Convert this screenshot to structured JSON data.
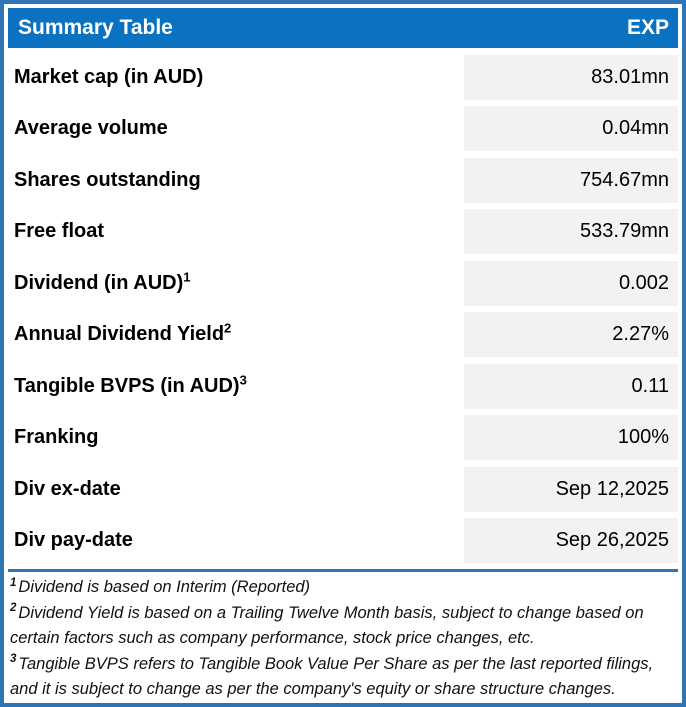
{
  "header": {
    "title": "Summary Table",
    "ticker": "EXP"
  },
  "rows": [
    {
      "label": "Market cap (in AUD)",
      "sup": "",
      "value": "83.01mn"
    },
    {
      "label": "Average volume",
      "sup": "",
      "value": "0.04mn"
    },
    {
      "label": "Shares outstanding",
      "sup": "",
      "value": "754.67mn"
    },
    {
      "label": "Free float",
      "sup": "",
      "value": "533.79mn"
    },
    {
      "label": "Dividend (in AUD)",
      "sup": "1",
      "value": "0.002"
    },
    {
      "label": "Annual Dividend Yield",
      "sup": "2",
      "value": "2.27%"
    },
    {
      "label": "Tangible BVPS (in AUD)",
      "sup": "3",
      "value": "0.11"
    },
    {
      "label": "Franking",
      "sup": "",
      "value": "100%"
    },
    {
      "label": "Div ex-date",
      "sup": "",
      "value": "Sep 12,2025"
    },
    {
      "label": "Div pay-date",
      "sup": "",
      "value": "Sep 26,2025"
    }
  ],
  "footnotes": [
    {
      "sup": "1",
      "text": "Dividend is based on Interim (Reported)"
    },
    {
      "sup": "2",
      "text": "Dividend Yield is based on a Trailing Twelve Month basis, subject to change based on certain factors such as company performance, stock price changes, etc."
    },
    {
      "sup": "3",
      "text": "Tangible BVPS refers to Tangible Book Value Per Share as per the last reported filings, and it is subject to change as per the company's equity or share structure changes."
    }
  ],
  "colors": {
    "header_bg": "#0B72C2",
    "header_text": "#FFFFFF",
    "outer_border": "#2E75B6",
    "value_cell_bg": "#F2F2F2",
    "divider": "#2E75B6",
    "text": "#000000"
  }
}
